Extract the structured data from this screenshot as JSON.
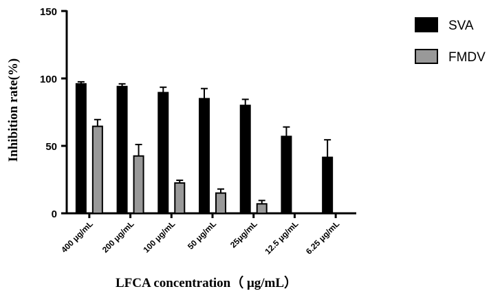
{
  "chart_data": {
    "type": "bar",
    "title": "",
    "xlabel": "LFCA concentration（  μg/mL）",
    "ylabel": "Inhibition rate(%)",
    "ylim": [
      0,
      150
    ],
    "yticks": [
      "0",
      "50",
      "100",
      "150"
    ],
    "categories": [
      "400 μg/mL",
      "200 μg/mL",
      "100 μg/mL",
      "50 μg/mL",
      "25μg/mL",
      "12.5 μg/mL",
      "6.25 μg/mL"
    ],
    "series": [
      {
        "name": "SVA",
        "color": "#000000",
        "values": [
          96,
          94,
          89.5,
          85,
          80,
          57,
          41.5
        ],
        "errors": [
          1.5,
          2,
          4,
          7.5,
          4.5,
          7,
          13
        ]
      },
      {
        "name": "FMDV",
        "color": "#999999",
        "values": [
          64.5,
          42.5,
          22.5,
          15,
          7,
          null,
          null
        ],
        "errors": [
          5,
          8.5,
          2,
          3,
          2.5,
          null,
          null
        ]
      }
    ],
    "legend_position": "top-right",
    "grid": false
  }
}
